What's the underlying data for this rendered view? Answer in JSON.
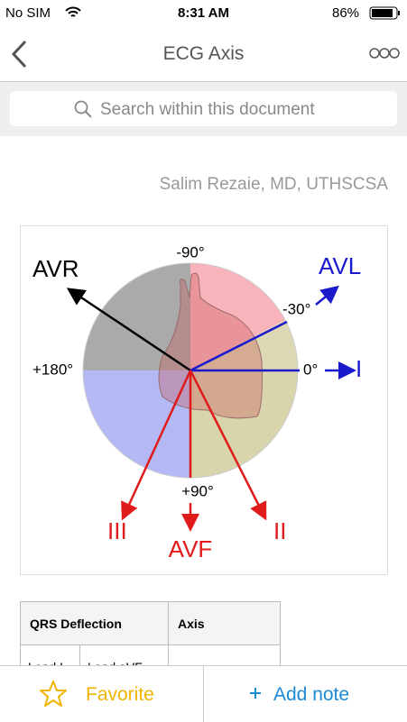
{
  "status_bar": {
    "carrier": "No SIM",
    "time": "8:31 AM",
    "battery": "86%"
  },
  "nav": {
    "title": "ECG Axis"
  },
  "search": {
    "placeholder": "Search within this document"
  },
  "document": {
    "author": "Salim Rezaie, MD, UTHSCSA",
    "figure": {
      "minus_90": "-90°",
      "avr": "AVR",
      "avl": "AVL",
      "minus_30": "-30°",
      "plus_180": "+180°",
      "zero": "0°",
      "lead_i": "I",
      "plus_90": "+90°",
      "lead_iii": "III",
      "avf": "AVF",
      "lead_ii": "II"
    },
    "table": {
      "header": [
        "QRS Deflection",
        "Axis"
      ],
      "subheader": [
        "Lead I",
        "Lead aVF"
      ]
    }
  },
  "toolbar": {
    "favorite": "Favorite",
    "add_note": "Add note"
  }
}
